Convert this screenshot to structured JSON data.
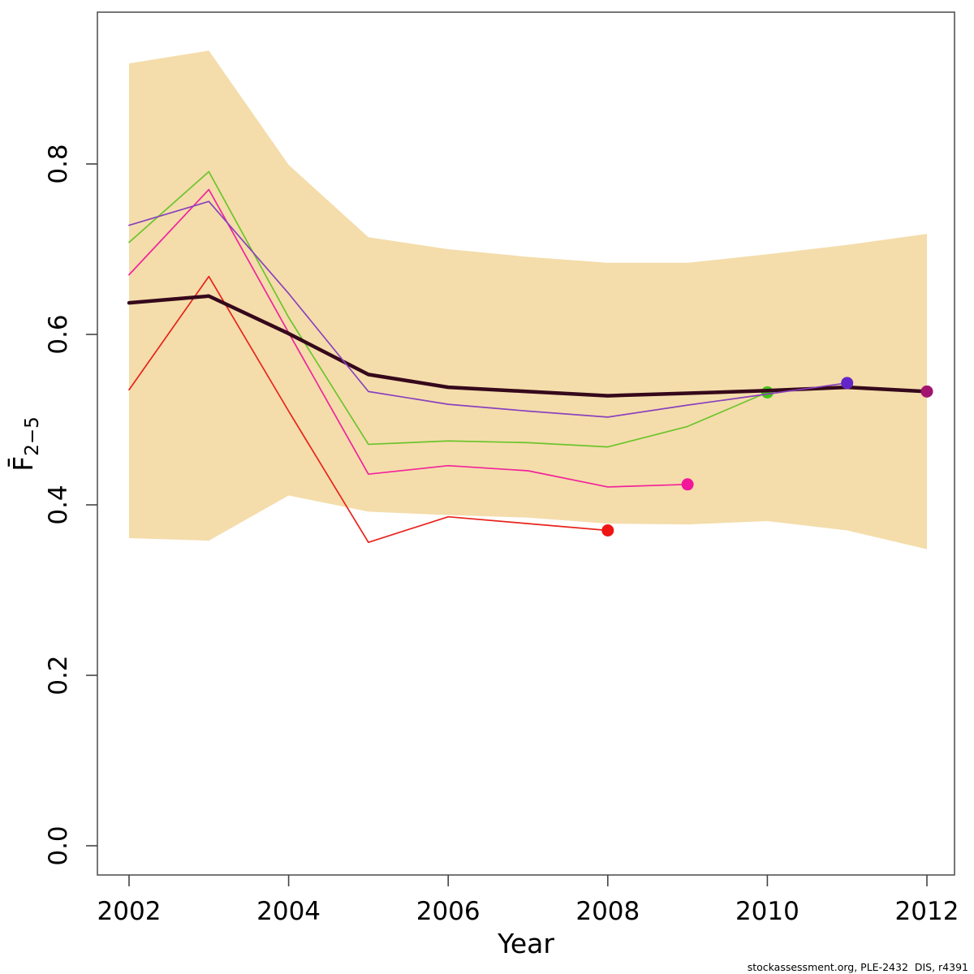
{
  "figure": {
    "xlabel": "Year",
    "ylabel_base": "F̄",
    "ylabel_sub": "2−5",
    "footer": "stockassessment.org, PLE-2432  DIS, r4391"
  },
  "chart_data": {
    "type": "line",
    "title": "",
    "xlabel": "Year",
    "ylabel": "Fbar(2-5)",
    "xlim": [
      2002,
      2012
    ],
    "ylim": [
      0.0,
      0.98
    ],
    "grid": false,
    "legend": "none",
    "x_ticks": [
      2002,
      2004,
      2006,
      2008,
      2010,
      2012
    ],
    "x_tick_labels": [
      "2002",
      "2004",
      "2006",
      "2008",
      "2010",
      "2012"
    ],
    "y_ticks": [
      0.0,
      0.2,
      0.4,
      0.6,
      0.8
    ],
    "y_tick_labels": [
      "0.0",
      "0.2",
      "0.4",
      "0.6",
      "0.8"
    ],
    "x": [
      2002,
      2003,
      2004,
      2005,
      2006,
      2007,
      2008,
      2009,
      2010,
      2011,
      2012
    ],
    "band": {
      "name": "confidence-band",
      "color": "#f4ddab",
      "top": [
        0.918,
        0.933,
        0.799,
        0.714,
        0.7,
        0.691,
        0.684,
        0.684,
        0.694,
        0.705,
        0.718
      ],
      "bottom": [
        0.361,
        0.358,
        0.411,
        0.392,
        0.388,
        0.385,
        0.378,
        0.377,
        0.381,
        0.37,
        0.348
      ]
    },
    "series": [
      {
        "name": "retro-2008",
        "color": "#e8231b",
        "dot_color": "#ee1512",
        "line_width": 1.7,
        "end_dot": true,
        "x_start": 2002,
        "values": [
          0.535,
          0.668,
          0.51,
          0.356,
          0.386,
          0.378,
          0.37
        ]
      },
      {
        "name": "retro-2009",
        "color": "#f2239b",
        "dot_color": "#f2179b",
        "line_width": 1.7,
        "end_dot": true,
        "x_start": 2002,
        "values": [
          0.67,
          0.77,
          0.602,
          0.436,
          0.446,
          0.44,
          0.421,
          0.424
        ]
      },
      {
        "name": "retro-2010",
        "color": "#6cc42c",
        "dot_color": "#46c317",
        "line_width": 1.7,
        "end_dot": true,
        "x_start": 2002,
        "values": [
          0.708,
          0.791,
          0.62,
          0.471,
          0.475,
          0.473,
          0.468,
          0.492,
          0.532
        ]
      },
      {
        "name": "final-2012",
        "color": "#36081b",
        "dot_color": "#a2156f",
        "line_width": 4.5,
        "end_dot": true,
        "x_start": 2002,
        "values": [
          0.637,
          0.645,
          0.601,
          0.553,
          0.538,
          0.533,
          0.528,
          0.531,
          0.534,
          0.538,
          0.533
        ]
      },
      {
        "name": "retro-2011",
        "color": "#8a41bd",
        "dot_color": "#6425c8",
        "line_width": 1.7,
        "end_dot": true,
        "x_start": 2002,
        "values": [
          0.728,
          0.756,
          0.648,
          0.533,
          0.518,
          0.51,
          0.503,
          0.517,
          0.53,
          0.543
        ]
      }
    ]
  }
}
